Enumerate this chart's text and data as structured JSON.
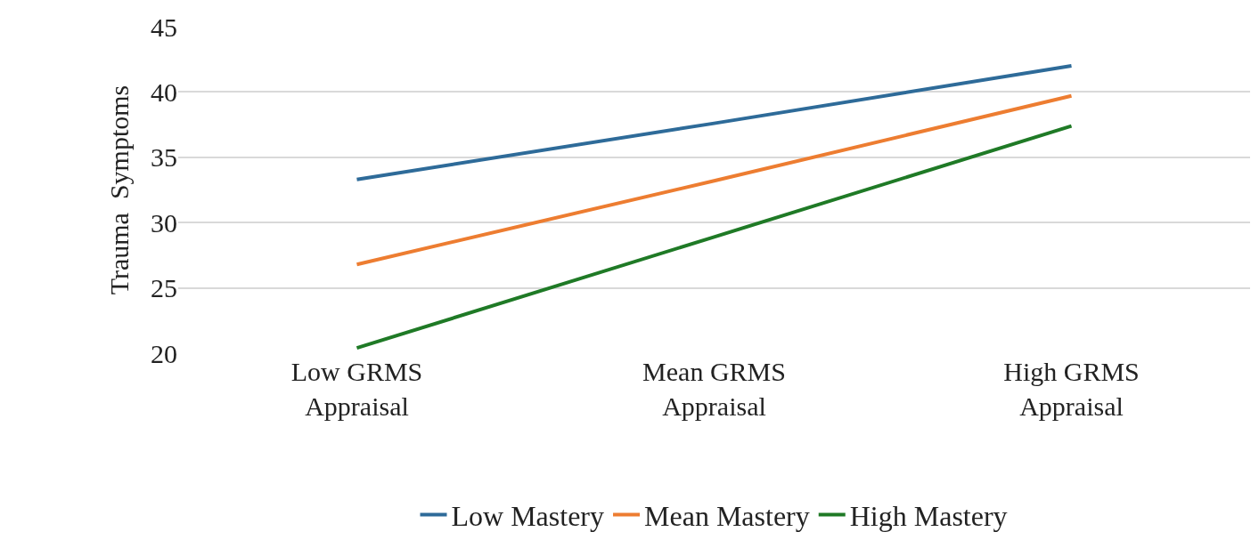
{
  "chart_data": {
    "type": "line",
    "ylabel": "Trauma  Symptoms",
    "categories": [
      "Low GRMS Appraisal",
      "Mean GRMS Appraisal",
      "High GRMS Appraisal"
    ],
    "series": [
      {
        "name": "Low Mastery",
        "color": "#2e6b99",
        "values": [
          33.3,
          37.6,
          42.0
        ]
      },
      {
        "name": "Mean Mastery",
        "color": "#ed7d31",
        "values": [
          26.8,
          33.2,
          39.7
        ]
      },
      {
        "name": "High Mastery",
        "color": "#1f7a26",
        "values": [
          20.4,
          28.9,
          37.4
        ]
      }
    ],
    "ylim": [
      20,
      45
    ],
    "yticks": [
      20,
      25,
      30,
      35,
      40,
      45
    ],
    "grid": "y",
    "legend": "bottom",
    "marker": "none",
    "line_style": "solid"
  }
}
